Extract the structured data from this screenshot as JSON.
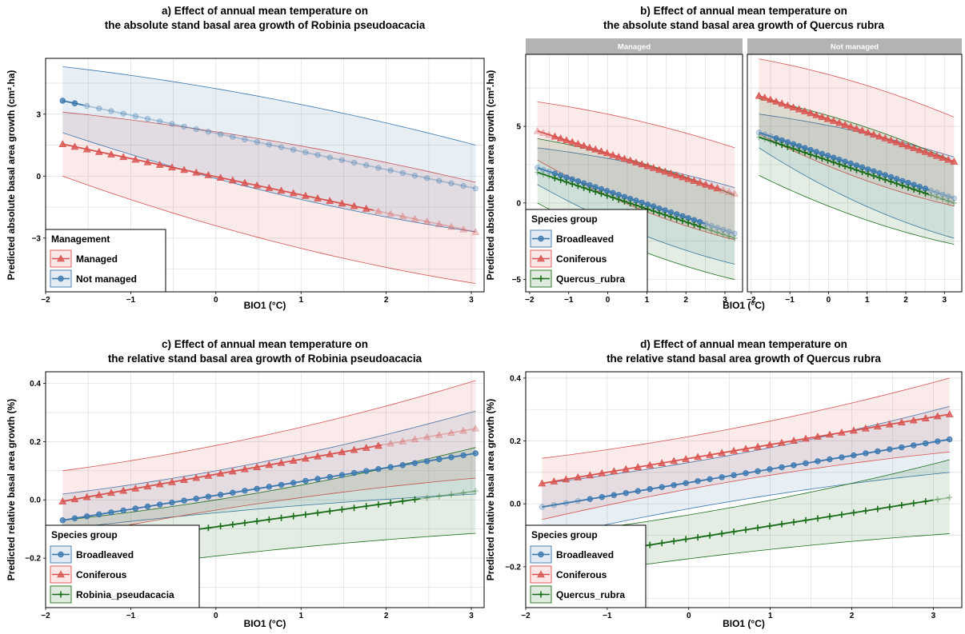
{
  "colors": {
    "blue": "#3b78b0",
    "red": "#d9534f",
    "green": "#1a6e1a",
    "grid": "#dedede",
    "strip": "#b3b3b3"
  },
  "chart_data": [
    {
      "id": "a",
      "type": "line",
      "title_lines": [
        "a) Effect of annual mean temperature on",
        "the absolute stand basal area growth of Robinia pseudoacacia"
      ],
      "xlabel": "BIO1 (°C)",
      "ylabel": "Predicted absolute basal area growth (cm².ha)",
      "xlim": [
        -2.0,
        3.15
      ],
      "ylim": [
        -5.6,
        5.7
      ],
      "xticks": [
        -2,
        -1,
        0,
        1,
        2,
        3
      ],
      "yticks": [
        -3,
        0,
        3
      ],
      "grid": true,
      "legend": {
        "title": "Management",
        "position": "bottom-left",
        "entries": [
          "Managed",
          "Not managed"
        ]
      },
      "series": [
        {
          "name": "Managed",
          "color": "red",
          "marker": "triangle",
          "x_range": [
            -1.8,
            3.05
          ],
          "y_start": 1.55,
          "y_end": -2.7,
          "lower": [
            0.0,
            -5.2
          ],
          "upper": [
            3.1,
            -0.3
          ],
          "faded_from": 1.85
        },
        {
          "name": "Not managed",
          "color": "blue",
          "marker": "circle",
          "x_range": [
            -1.8,
            3.05
          ],
          "y_start": 3.65,
          "y_end": -0.6,
          "lower": [
            2.1,
            -2.7
          ],
          "upper": [
            5.3,
            1.5
          ],
          "faded_from": -1.55
        }
      ]
    },
    {
      "id": "b",
      "type": "line",
      "title_lines": [
        "b) Effect of annual mean temperature on",
        "the absolute stand basal area growth of Quercus rubra"
      ],
      "xlabel": "BIO1 (°C)",
      "ylabel": "Predicted absolute basal area growth (cm².ha)",
      "xlim": [
        -2.1,
        3.45
      ],
      "ylim": [
        -5.8,
        9.7
      ],
      "xticks": [
        -2,
        -1,
        0,
        1,
        2,
        3
      ],
      "yticks": [
        -5,
        0,
        5
      ],
      "grid": true,
      "facets": [
        {
          "label": "Managed",
          "series": [
            {
              "name": "Broadleaved",
              "color": "blue",
              "marker": "circle",
              "x_range": [
                -1.8,
                3.25
              ],
              "y_start": 2.3,
              "y_end": -2.0,
              "lower": [
                1.2,
                -4.0
              ],
              "upper": [
                3.6,
                1.0
              ],
              "faded_from": 2.5,
              "faded_to": -1.5
            },
            {
              "name": "Coniferous",
              "color": "red",
              "marker": "triangle",
              "x_range": [
                -1.8,
                3.25
              ],
              "y_start": 4.7,
              "y_end": 0.6,
              "lower": [
                2.8,
                -2.4
              ],
              "upper": [
                6.6,
                3.6
              ],
              "faded_from": 2.9,
              "faded_to": -1.5
            },
            {
              "name": "Quercus_rubra",
              "color": "green",
              "marker": "plus",
              "x_range": [
                -1.8,
                3.25
              ],
              "y_start": 2.0,
              "y_end": -2.3,
              "lower": [
                0.0,
                -5.0
              ],
              "upper": [
                4.2,
                0.5
              ],
              "faded_from": 2.5,
              "faded_to": -1.5
            }
          ]
        },
        {
          "label": "Not managed",
          "series": [
            {
              "name": "Broadleaved",
              "color": "blue",
              "marker": "circle",
              "x_range": [
                -1.8,
                3.25
              ],
              "y_start": 4.6,
              "y_end": 0.3,
              "lower": [
                3.6,
                -2.3
              ],
              "upper": [
                5.8,
                3.0
              ],
              "faded_from": 2.6,
              "faded_to": -1.4
            },
            {
              "name": "Coniferous",
              "color": "red",
              "marker": "triangle",
              "x_range": [
                -1.8,
                3.25
              ],
              "y_start": 7.0,
              "y_end": 2.7,
              "lower": [
                4.5,
                -0.2
              ],
              "upper": [
                9.4,
                5.6
              ],
              "faded_from": 9,
              "faded_to": -9
            },
            {
              "name": "Quercus_rubra",
              "color": "green",
              "marker": "plus",
              "x_range": [
                -1.8,
                3.25
              ],
              "y_start": 4.3,
              "y_end": 0.0,
              "lower": [
                1.8,
                -2.7
              ],
              "upper": [
                6.8,
                2.7
              ],
              "faded_from": 2.6,
              "faded_to": -1.4
            }
          ]
        }
      ],
      "legend": {
        "title": "Species group",
        "position": "bottom-left",
        "entries": [
          "Broadleaved",
          "Coniferous",
          "Quercus_rubra"
        ]
      }
    },
    {
      "id": "c",
      "type": "line",
      "title_lines": [
        "c) Effect of annual mean temperature on",
        "the relative stand basal area growth of Robinia pseudoacacia"
      ],
      "xlabel": "BIO1 (°C)",
      "ylabel": "Predicted relative basal area growth (%)",
      "xlim": [
        -2.0,
        3.15
      ],
      "ylim": [
        -0.37,
        0.44
      ],
      "xticks": [
        -2,
        -1,
        0,
        1,
        2,
        3
      ],
      "yticks": [
        -0.2,
        0.0,
        0.2,
        0.4
      ],
      "grid": true,
      "legend": {
        "title": "Species group",
        "position": "bottom-left",
        "entries": [
          "Broadleaved",
          "Coniferous",
          "Robinia_pseudacacia"
        ]
      },
      "series": [
        {
          "name": "Broadleaved",
          "color": "blue",
          "marker": "circle",
          "x_range": [
            -1.8,
            3.05
          ],
          "y_start": -0.07,
          "y_end": 0.16,
          "lower": [
            -0.1,
            0.02
          ],
          "upper": [
            0.02,
            0.305
          ],
          "faded_from": 9,
          "faded_to": -9
        },
        {
          "name": "Coniferous",
          "color": "red",
          "marker": "triangle",
          "x_range": [
            -1.8,
            3.05
          ],
          "y_start": -0.005,
          "y_end": 0.245,
          "lower": [
            -0.13,
            0.075
          ],
          "upper": [
            0.1,
            0.41
          ],
          "faded_from": 1.95
        },
        {
          "name": "Robinia_pseudacacia",
          "color": "green",
          "marker": "plus",
          "x_range": [
            -1.8,
            3.05
          ],
          "y_start": -0.165,
          "y_end": 0.03,
          "lower": [
            -0.26,
            -0.115
          ],
          "upper": [
            -0.07,
            0.18
          ],
          "faded_from": 2.4
        }
      ]
    },
    {
      "id": "d",
      "type": "line",
      "title_lines": [
        "d) Effect of annual mean temperature on",
        "the relative stand basal area growth of Quercus rubra"
      ],
      "xlabel": "BIO1 (°C)",
      "ylabel": "Predicted relative basal area growth (%)",
      "xlim": [
        -2.0,
        3.35
      ],
      "ylim": [
        -0.33,
        0.42
      ],
      "xticks": [
        -2,
        -1,
        0,
        1,
        2,
        3
      ],
      "yticks": [
        -0.2,
        0.0,
        0.2,
        0.4
      ],
      "grid": true,
      "legend": {
        "title": "Species group",
        "position": "bottom-left",
        "entries": [
          "Broadleaved",
          "Coniferous",
          "Quercus_rubra"
        ]
      },
      "series": [
        {
          "name": "Broadleaved",
          "color": "blue",
          "marker": "circle",
          "x_range": [
            -1.8,
            3.2
          ],
          "y_start": -0.01,
          "y_end": 0.205,
          "lower": [
            -0.11,
            0.1
          ],
          "upper": [
            0.065,
            0.31
          ],
          "faded_from": 9,
          "faded_to": -1.25
        },
        {
          "name": "Coniferous",
          "color": "red",
          "marker": "triangle",
          "x_range": [
            -1.8,
            3.2
          ],
          "y_start": 0.065,
          "y_end": 0.285,
          "lower": [
            -0.05,
            0.165
          ],
          "upper": [
            0.145,
            0.4
          ],
          "faded_from": 9,
          "faded_to": -9
        },
        {
          "name": "Quercus_rubra",
          "color": "green",
          "marker": "plus",
          "x_range": [
            -1.8,
            3.2
          ],
          "y_start": -0.185,
          "y_end": 0.02,
          "lower": [
            -0.24,
            -0.095
          ],
          "upper": [
            -0.1,
            0.14
          ],
          "faded_from": 3.0
        }
      ]
    }
  ]
}
